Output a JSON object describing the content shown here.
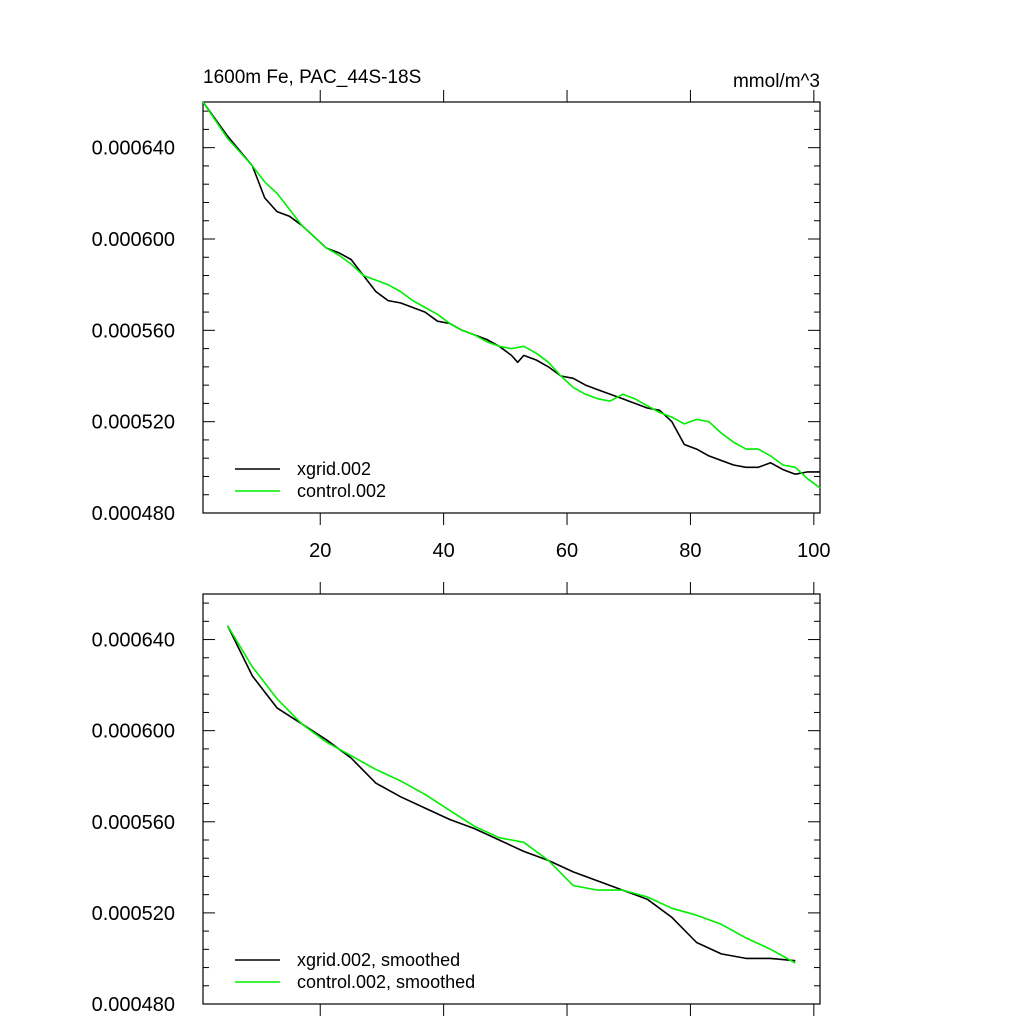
{
  "figure": {
    "title_left": "1600m Fe, PAC_44S-18S",
    "title_right": "mmol/m^3"
  },
  "chart_data": [
    {
      "type": "line",
      "title": "1600m Fe, PAC_44S-18S",
      "units": "mmol/m^3",
      "xlim": [
        1,
        101
      ],
      "ylim": [
        0.00048,
        0.00066
      ],
      "x_ticks": [
        20,
        40,
        60,
        80,
        100
      ],
      "x_tick_labels": [
        "20",
        "40",
        "60",
        "80",
        "100"
      ],
      "y_ticks": [
        0.00048,
        0.00052,
        0.00056,
        0.0006,
        0.00064
      ],
      "y_tick_labels": [
        "0.000480",
        "0.000520",
        "0.000560",
        "0.000600",
        "0.000640"
      ],
      "legend_position": "bottom-left",
      "series": [
        {
          "name": "xgrid.002",
          "color": "#000000",
          "x": [
            1,
            5,
            9,
            11,
            13,
            15,
            17,
            19,
            21,
            23,
            25,
            27,
            29,
            31,
            33,
            35,
            37,
            39,
            41,
            43,
            45,
            47,
            49,
            51,
            52,
            53,
            55,
            57,
            59,
            61,
            63,
            65,
            67,
            69,
            71,
            73,
            75,
            77,
            79,
            81,
            83,
            85,
            87,
            89,
            91,
            93,
            95,
            97,
            99,
            101
          ],
          "y": [
            0.00066,
            0.000645,
            0.000632,
            0.000618,
            0.000612,
            0.00061,
            0.000606,
            0.000601,
            0.000596,
            0.000594,
            0.000591,
            0.000584,
            0.000577,
            0.000573,
            0.000572,
            0.00057,
            0.000568,
            0.000564,
            0.000563,
            0.00056,
            0.000558,
            0.000556,
            0.000553,
            0.000549,
            0.000546,
            0.000549,
            0.000547,
            0.000544,
            0.00054,
            0.000539,
            0.000536,
            0.000534,
            0.000532,
            0.00053,
            0.000528,
            0.000526,
            0.000525,
            0.00052,
            0.00051,
            0.000508,
            0.000505,
            0.000503,
            0.000501,
            0.0005,
            0.0005,
            0.000502,
            0.000499,
            0.000497,
            0.000498,
            0.000498
          ]
        },
        {
          "name": "control.002",
          "color": "#00ee00",
          "x": [
            1,
            5,
            9,
            11,
            13,
            15,
            17,
            19,
            21,
            23,
            25,
            27,
            29,
            31,
            33,
            35,
            37,
            39,
            41,
            43,
            45,
            47,
            49,
            51,
            53,
            55,
            57,
            59,
            61,
            63,
            65,
            67,
            69,
            71,
            73,
            75,
            77,
            79,
            81,
            83,
            85,
            87,
            89,
            91,
            93,
            95,
            97,
            99,
            101
          ],
          "y": [
            0.00066,
            0.000644,
            0.000632,
            0.000625,
            0.00062,
            0.000613,
            0.000606,
            0.000601,
            0.000596,
            0.000593,
            0.000589,
            0.000584,
            0.000582,
            0.00058,
            0.000577,
            0.000573,
            0.00057,
            0.000567,
            0.000563,
            0.00056,
            0.000558,
            0.000555,
            0.000553,
            0.000552,
            0.000553,
            0.00055,
            0.000546,
            0.00054,
            0.000535,
            0.000532,
            0.00053,
            0.000529,
            0.000532,
            0.00053,
            0.000527,
            0.000524,
            0.000522,
            0.000519,
            0.000521,
            0.00052,
            0.000515,
            0.000511,
            0.000508,
            0.000508,
            0.000505,
            0.000501,
            0.0005,
            0.000495,
            0.000491
          ]
        }
      ]
    },
    {
      "type": "line",
      "xlim": [
        1,
        101
      ],
      "ylim": [
        0.00048,
        0.00066
      ],
      "x_ticks": [
        20,
        40,
        60,
        80,
        100
      ],
      "x_tick_labels": [],
      "y_ticks": [
        0.00048,
        0.00052,
        0.00056,
        0.0006,
        0.00064
      ],
      "y_tick_labels": [
        "0.000480",
        "0.000520",
        "0.000560",
        "0.000600",
        "0.000640"
      ],
      "legend_position": "bottom-left",
      "series": [
        {
          "name": "xgrid.002, smoothed",
          "color": "#000000",
          "x": [
            5,
            9,
            13,
            17,
            21,
            25,
            29,
            33,
            37,
            41,
            45,
            49,
            53,
            57,
            61,
            65,
            69,
            73,
            77,
            81,
            85,
            89,
            93,
            97
          ],
          "y": [
            0.000646,
            0.000624,
            0.00061,
            0.000603,
            0.000596,
            0.000588,
            0.000577,
            0.000571,
            0.000566,
            0.000561,
            0.000557,
            0.000552,
            0.000547,
            0.000543,
            0.000538,
            0.000534,
            0.00053,
            0.000526,
            0.000518,
            0.000507,
            0.000502,
            0.0005,
            0.0005,
            0.000499
          ]
        },
        {
          "name": "control.002, smoothed",
          "color": "#00ee00",
          "x": [
            5,
            9,
            13,
            17,
            21,
            25,
            29,
            33,
            37,
            41,
            45,
            49,
            53,
            57,
            61,
            65,
            69,
            73,
            77,
            81,
            85,
            89,
            93,
            97
          ],
          "y": [
            0.000646,
            0.000628,
            0.000614,
            0.000603,
            0.000595,
            0.000589,
            0.000583,
            0.000578,
            0.000572,
            0.000565,
            0.000558,
            0.000553,
            0.000551,
            0.000543,
            0.000532,
            0.00053,
            0.00053,
            0.000527,
            0.000522,
            0.000519,
            0.000515,
            0.000509,
            0.000504,
            0.000498
          ]
        }
      ]
    }
  ]
}
